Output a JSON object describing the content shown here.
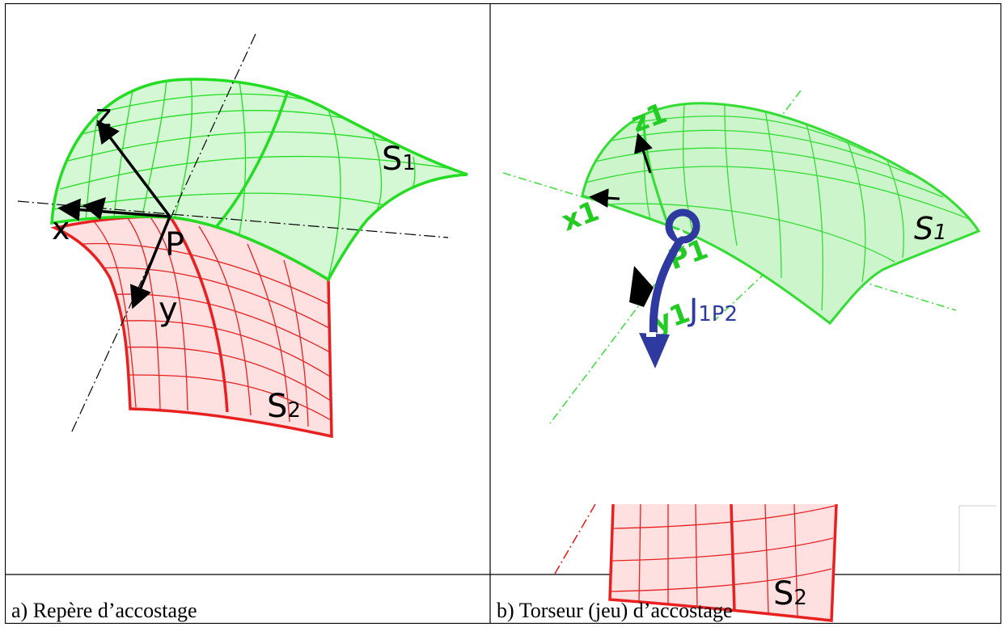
{
  "panel_a": {
    "caption": "a) Repère d’accostage",
    "labels": {
      "z": "z",
      "x": "x",
      "y": "y",
      "p": "P",
      "s1": "S",
      "s1_sub": "1",
      "s2": "S",
      "s2_sub": "2"
    },
    "colors": {
      "s1_fill": "#d4f7d4",
      "s1_line": "#22dd22",
      "s2_fill": "#ffe0e0",
      "s2_line": "#e82020",
      "axis": "#000000"
    }
  },
  "panel_b": {
    "caption": "b) Torseur (jeu) d’accostage",
    "labels": {
      "z1": "z1",
      "x1": "x1",
      "y1": "y1",
      "p1": "P1",
      "j": "J",
      "j_sub": "1P2",
      "s1": "S",
      "s1_sub": "1",
      "s2": "S",
      "s2_sub": "2"
    },
    "colors": {
      "s1_fill": "#ccf5cc",
      "s1_line": "#33dd33",
      "label_green": "#22cc22",
      "torsor": "#2f3aa0",
      "s2_fill": "#ffe0e0",
      "s2_line": "#e82020"
    }
  }
}
